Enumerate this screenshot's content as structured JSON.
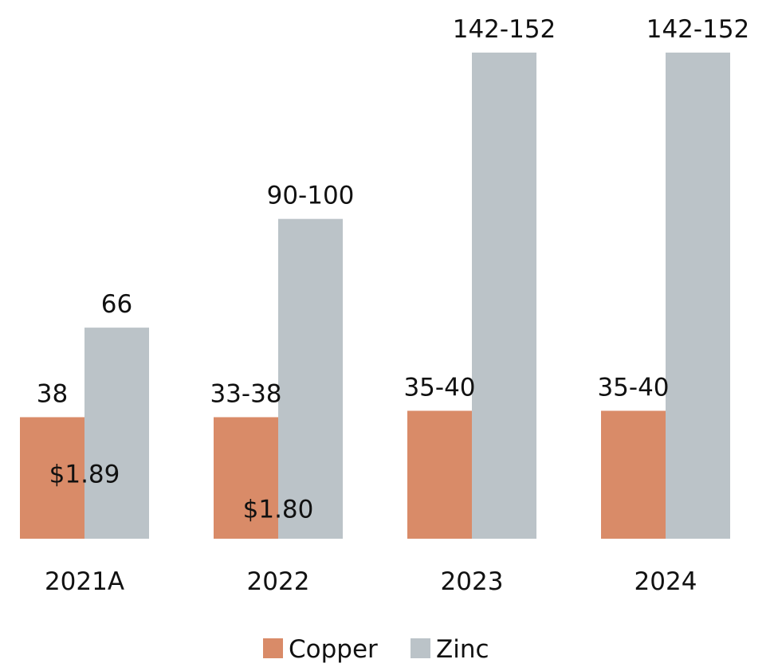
{
  "chart_data": {
    "type": "bar",
    "categories": [
      "2021A",
      "2022",
      "2023",
      "2024"
    ],
    "ylim": [
      0,
      152
    ],
    "grid": false,
    "legend_position": "bottom",
    "series": [
      {
        "name": "Copper",
        "color": "#d98b68",
        "values": [
          38,
          38,
          40,
          40
        ],
        "data_labels": [
          "38",
          "33-38",
          "35-40",
          "35-40"
        ]
      },
      {
        "name": "Zinc",
        "color": "#bbc3c8",
        "values": [
          66,
          100,
          152,
          152
        ],
        "data_labels": [
          "66",
          "90-100",
          "142-152",
          "142-152"
        ]
      }
    ],
    "annotations": [
      {
        "category_index": 0,
        "text": "$1.89"
      },
      {
        "category_index": 1,
        "text": "$1.80"
      }
    ]
  }
}
